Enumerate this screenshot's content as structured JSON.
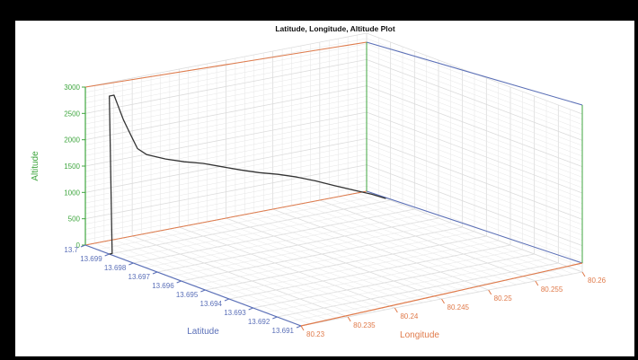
{
  "chart_data": {
    "type": "line",
    "projection": "3d",
    "title": "Latitude, Longitude, Altitude Plot",
    "xlabel": "Longitude",
    "ylabel": "Latitude",
    "zlabel": "Altitude",
    "xlim": [
      80.23,
      80.26
    ],
    "ylim": [
      13.691,
      13.7
    ],
    "zlim": [
      0,
      3000
    ],
    "x_ticks": [
      "80.23",
      "80.235",
      "80.24",
      "80.245",
      "80.25",
      "80.255",
      "80.26"
    ],
    "y_ticks": [
      "13.7",
      "13.699",
      "13.698",
      "13.697",
      "13.696",
      "13.695",
      "13.694",
      "13.693",
      "13.692",
      "13.691"
    ],
    "z_ticks": [
      "0",
      "500",
      "1000",
      "1500",
      "2000",
      "2500",
      "3000"
    ],
    "grid": true,
    "line_color": "#333333",
    "axis_colors": {
      "x": "#e07a4a",
      "y": "#5a6fb8",
      "z": "#3fa63f"
    },
    "series": [
      {
        "points": [
          {
            "x": 80.23,
            "y": 13.699,
            "z": 0
          },
          {
            "x": 80.2303,
            "y": 13.699,
            "z": 0
          },
          {
            "x": 80.23,
            "y": 13.699,
            "z": 3000
          },
          {
            "x": 80.2305,
            "y": 13.699,
            "z": 3000
          },
          {
            "x": 80.231,
            "y": 13.699,
            "z": 2750
          },
          {
            "x": 80.2315,
            "y": 13.699,
            "z": 2500
          },
          {
            "x": 80.232,
            "y": 13.699,
            "z": 2300
          },
          {
            "x": 80.2325,
            "y": 13.699,
            "z": 2100
          },
          {
            "x": 80.233,
            "y": 13.699,
            "z": 1900
          },
          {
            "x": 80.234,
            "y": 13.699,
            "z": 1750
          },
          {
            "x": 80.236,
            "y": 13.699,
            "z": 1600
          },
          {
            "x": 80.238,
            "y": 13.699,
            "z": 1480
          },
          {
            "x": 80.24,
            "y": 13.699,
            "z": 1380
          },
          {
            "x": 80.242,
            "y": 13.699,
            "z": 1250
          },
          {
            "x": 80.244,
            "y": 13.699,
            "z": 1120
          },
          {
            "x": 80.246,
            "y": 13.699,
            "z": 1000
          },
          {
            "x": 80.248,
            "y": 13.699,
            "z": 900
          },
          {
            "x": 80.25,
            "y": 13.699,
            "z": 780
          },
          {
            "x": 80.252,
            "y": 13.699,
            "z": 640
          },
          {
            "x": 80.254,
            "y": 13.699,
            "z": 480
          },
          {
            "x": 80.256,
            "y": 13.699,
            "z": 330
          },
          {
            "x": 80.258,
            "y": 13.699,
            "z": 180
          },
          {
            "x": 80.2595,
            "y": 13.699,
            "z": 50
          }
        ]
      }
    ]
  }
}
